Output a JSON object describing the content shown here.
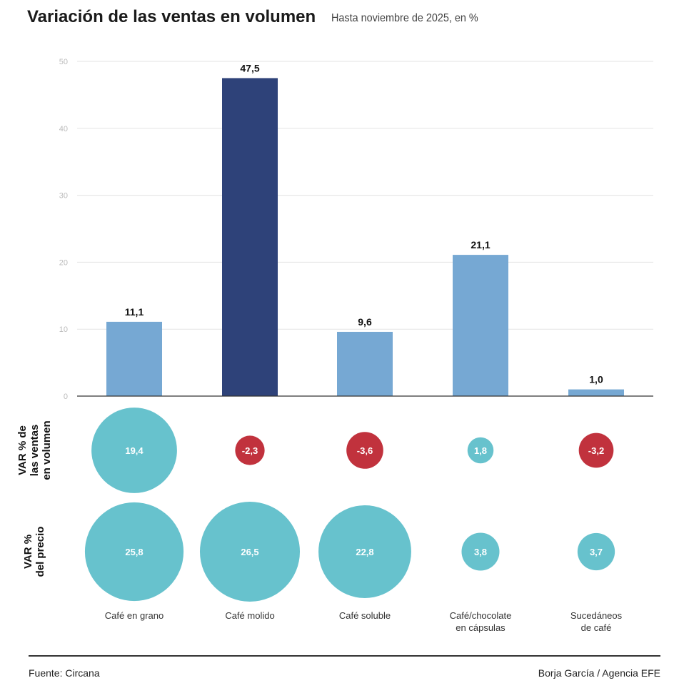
{
  "chart_data": [
    {
      "type": "bar",
      "title": "Variación de las ventas en volumen",
      "subtitle": "Hasta noviembre de 2025, en %",
      "categories": [
        "Café en grano",
        "Café molido",
        "Café soluble",
        "Café/chocolate\nen cápsulas",
        "Sucedáneos\nde café"
      ],
      "values": [
        11.1,
        47.5,
        9.6,
        21.1,
        1.0
      ],
      "value_labels": [
        "11,1",
        "47,5",
        "9,6",
        "21,1",
        "1,0"
      ],
      "ylim": [
        0,
        50
      ],
      "yticks": [
        "0",
        "10",
        "20",
        "30",
        "40",
        "50"
      ],
      "grid": true,
      "colors": [
        "#76a8d3",
        "#2e4279",
        "#76a8d3",
        "#76a8d3",
        "#76a8d3"
      ]
    },
    {
      "type": "bubble",
      "row_label": "VAR % de\nlas ventas\nen volumen",
      "values": [
        19.4,
        -2.3,
        -3.6,
        1.8,
        -3.2
      ],
      "value_labels": [
        "19,4",
        "-2,3",
        "-3,6",
        "1,8",
        "-3,2"
      ]
    },
    {
      "type": "bubble",
      "row_label": "VAR %\ndel precio",
      "values": [
        25.8,
        26.5,
        22.8,
        3.8,
        3.7
      ],
      "value_labels": [
        "25,8",
        "26,5",
        "22,8",
        "3,8",
        "3,7"
      ]
    }
  ],
  "colors": {
    "positive": "#67c2cd",
    "negative": "#c1323d"
  },
  "footer": {
    "source": "Fuente: Circana",
    "credit": "Borja García / Agencia EFE"
  }
}
